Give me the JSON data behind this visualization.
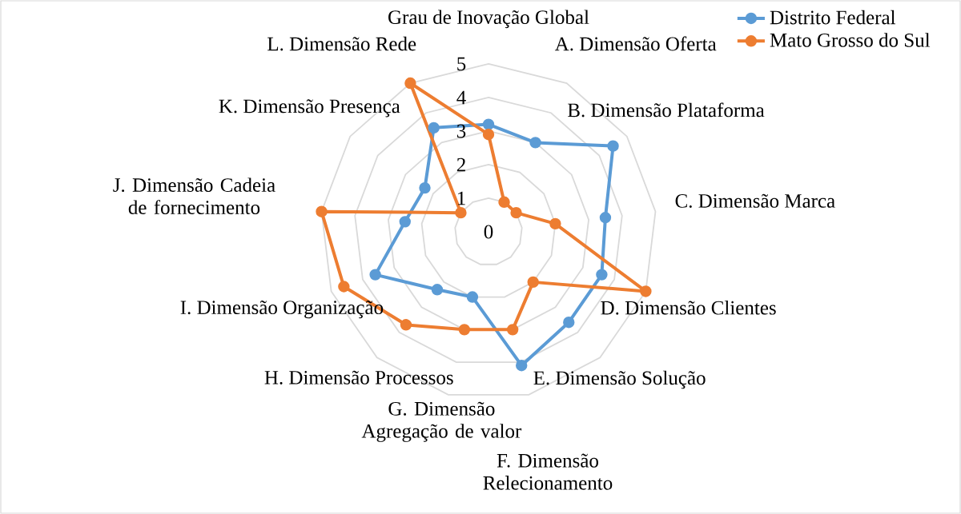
{
  "chart_data": {
    "type": "radar",
    "categories": [
      "Grau de Inovação Global",
      "A. Dimensão Oferta",
      "B. Dimensão Plataforma",
      "C. Dimensão Marca",
      "D. Dimensão Clientes",
      "E. Dimensão Solução",
      "F. Dimensão Relecionamento",
      "G. Dimensão Agregação de valor",
      "H. Dimensão Processos",
      "I. Dimensão Organização",
      "J. Dimensão Cadeia de fornecimento",
      "K. Dimensão Presença",
      "L. Dimensão Rede"
    ],
    "series": [
      {
        "name": "Distrito Federal",
        "color": "#5b9bd5",
        "values": [
          3.2,
          3.0,
          4.5,
          3.5,
          3.6,
          3.6,
          4.1,
          2.0,
          2.3,
          3.6,
          2.5,
          2.3,
          3.5
        ]
      },
      {
        "name": "Mato Grosso do Sul",
        "color": "#ed7d31",
        "values": [
          2.9,
          1.0,
          1.0,
          2.0,
          5.0,
          2.0,
          3.0,
          3.0,
          3.7,
          4.6,
          5.0,
          1.0,
          5.0
        ]
      }
    ],
    "ylim": [
      0,
      5
    ],
    "yticks": [
      0,
      1,
      2,
      3,
      4,
      5
    ],
    "grid": true,
    "legend": "top right",
    "marker": "circle"
  }
}
